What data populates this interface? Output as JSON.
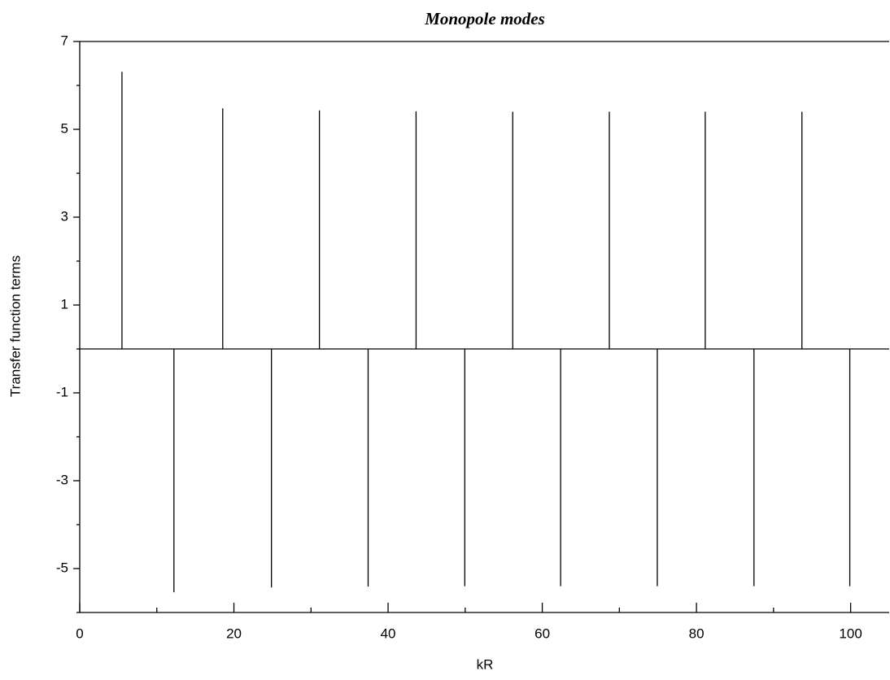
{
  "chart_data": {
    "type": "stem",
    "title": "Monopole modes",
    "xlabel": "kR",
    "ylabel": "Transfer function terms",
    "x": [
      5.48,
      12.22,
      18.55,
      24.87,
      31.09,
      37.41,
      43.63,
      49.95,
      56.17,
      62.38,
      68.7,
      74.92,
      81.14,
      87.46,
      93.68,
      99.89
    ],
    "values": [
      6.31,
      -5.54,
      5.48,
      -5.43,
      5.43,
      -5.41,
      5.41,
      -5.4,
      5.4,
      -5.4,
      5.4,
      -5.4,
      5.4,
      -5.4,
      5.4,
      -5.4
    ],
    "color": "#000000",
    "xlim": [
      0,
      105
    ],
    "ylim": [
      -6,
      7
    ],
    "xticks": [
      0,
      20,
      40,
      60,
      80,
      100
    ],
    "xminor": [
      10,
      30,
      50,
      70,
      90
    ],
    "yticks": [
      -5,
      -3,
      -1,
      1,
      3,
      5,
      7
    ],
    "yminor": [
      -6,
      -4,
      -2,
      0,
      2,
      4,
      6
    ]
  }
}
